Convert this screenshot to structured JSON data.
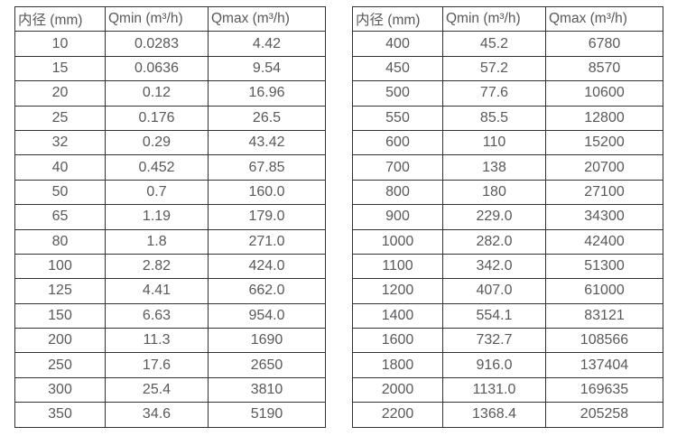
{
  "page": {
    "background": "#ffffff",
    "text_color": "#58595b",
    "border_color": "#333333"
  },
  "tables": [
    {
      "name": "flow-range-table-small-diameters",
      "headers": [
        "内径 (mm)",
        "Qmin (m³/h)",
        "Qmax (m³/h)"
      ],
      "rows": [
        [
          "10",
          "0.0283",
          "4.42"
        ],
        [
          "15",
          "0.0636",
          "9.54"
        ],
        [
          "20",
          "0.12",
          "16.96"
        ],
        [
          "25",
          "0.176",
          "26.5"
        ],
        [
          "32",
          "0.29",
          "43.42"
        ],
        [
          "40",
          "0.452",
          "67.85"
        ],
        [
          "50",
          "0.7",
          "160.0"
        ],
        [
          "65",
          "1.19",
          "179.0"
        ],
        [
          "80",
          "1.8",
          "271.0"
        ],
        [
          "100",
          "2.82",
          "424.0"
        ],
        [
          "125",
          "4.41",
          "662.0"
        ],
        [
          "150",
          "6.63",
          "954.0"
        ],
        [
          "200",
          "11.3",
          "1690"
        ],
        [
          "250",
          "17.6",
          "2650"
        ],
        [
          "300",
          "25.4",
          "3810"
        ],
        [
          "350",
          "34.6",
          "5190"
        ]
      ]
    },
    {
      "name": "flow-range-table-large-diameters",
      "headers": [
        "内径 (mm)",
        "Qmin (m³/h)",
        "Qmax (m³/h)"
      ],
      "rows": [
        [
          "400",
          "45.2",
          "6780"
        ],
        [
          "450",
          "57.2",
          "8570"
        ],
        [
          "500",
          "77.6",
          "10600"
        ],
        [
          "550",
          "85.5",
          "12800"
        ],
        [
          "600",
          "110",
          "15200"
        ],
        [
          "700",
          "138",
          "20700"
        ],
        [
          "800",
          "180",
          "27100"
        ],
        [
          "900",
          "229.0",
          "34300"
        ],
        [
          "1000",
          "282.0",
          "42400"
        ],
        [
          "1100",
          "342.0",
          "51300"
        ],
        [
          "1200",
          "407.0",
          "61000"
        ],
        [
          "1400",
          "554.1",
          "83121"
        ],
        [
          "1600",
          "732.7",
          "108566"
        ],
        [
          "1800",
          "916.0",
          "137404"
        ],
        [
          "2000",
          "1131.0",
          "169635"
        ],
        [
          "2200",
          "1368.4",
          "205258"
        ]
      ]
    }
  ]
}
